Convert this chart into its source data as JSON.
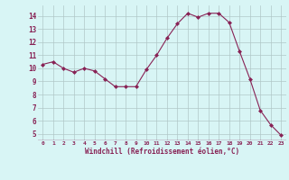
{
  "hours": [
    0,
    1,
    2,
    3,
    4,
    5,
    6,
    7,
    8,
    9,
    10,
    11,
    12,
    13,
    14,
    15,
    16,
    17,
    18,
    19,
    20,
    21,
    22,
    23
  ],
  "values": [
    10.3,
    10.5,
    10.0,
    9.7,
    10.0,
    9.8,
    9.2,
    8.6,
    8.6,
    8.6,
    9.9,
    11.0,
    12.3,
    13.4,
    14.2,
    13.9,
    14.2,
    14.2,
    13.5,
    11.3,
    9.2,
    6.8,
    5.7,
    4.9
  ],
  "line_color": "#882255",
  "marker": "D",
  "marker_size": 2,
  "bg_color": "#d8f5f5",
  "grid_color": "#b0c8c8",
  "xlabel": "Windchill (Refroidissement éolien,°C)",
  "xlabel_color": "#882255",
  "tick_color": "#882255",
  "ylim": [
    4.5,
    14.8
  ],
  "yticks": [
    5,
    6,
    7,
    8,
    9,
    10,
    11,
    12,
    13,
    14
  ],
  "xlim": [
    -0.5,
    23.5
  ],
  "figsize": [
    3.2,
    2.0
  ],
  "dpi": 100
}
